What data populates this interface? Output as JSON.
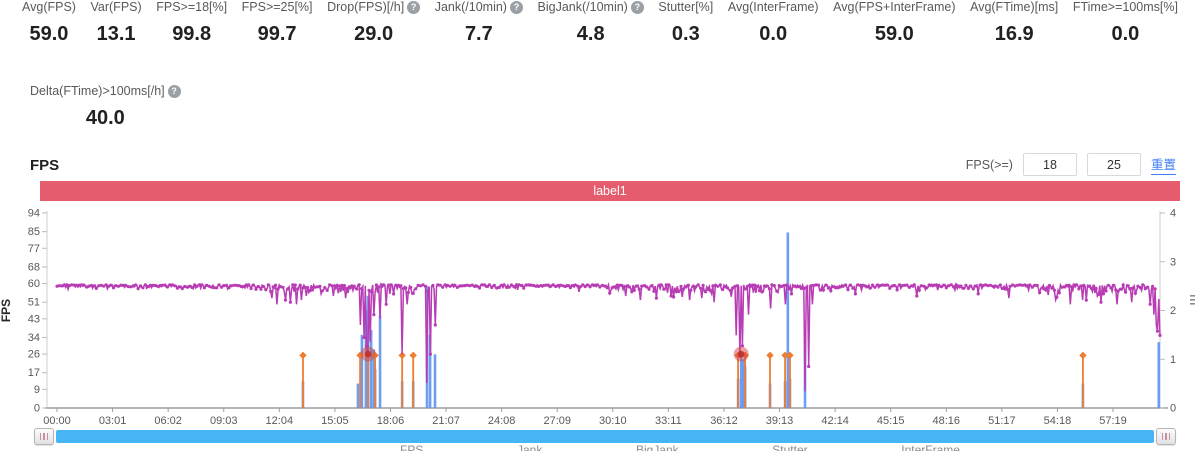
{
  "icons": {
    "help": "?"
  },
  "metrics": {
    "row1": [
      {
        "label": "Avg(FPS)",
        "value": "59.0"
      },
      {
        "label": "Var(FPS)",
        "value": "13.1"
      },
      {
        "label": "FPS>=18[%]",
        "value": "99.8"
      },
      {
        "label": "FPS>=25[%]",
        "value": "99.7"
      },
      {
        "label": "Drop(FPS)[/h]",
        "value": "29.0",
        "help": true
      },
      {
        "label": "Jank(/10min)",
        "value": "7.7",
        "help": true
      },
      {
        "label": "BigJank(/10min)",
        "value": "4.8",
        "help": true
      },
      {
        "label": "Stutter[%]",
        "value": "0.3"
      },
      {
        "label": "Avg(InterFrame)",
        "value": "0.0"
      },
      {
        "label": "Avg(FPS+InterFrame)",
        "value": "59.0"
      },
      {
        "label": "Avg(FTime)[ms]",
        "value": "16.9"
      },
      {
        "label": "FTime>=100ms[%]",
        "value": "0.0"
      }
    ],
    "row2": {
      "label": "Delta(FTime)>100ms[/h]",
      "value": "40.0",
      "help": true
    }
  },
  "section": {
    "title": "FPS"
  },
  "controls": {
    "fps_ge_label": "FPS(>=)",
    "threshold1": "18",
    "threshold2": "25",
    "reset_label": "重置"
  },
  "banner": {
    "text": "label1",
    "color": "#e45c6e"
  },
  "legend": {
    "items": [
      "FPS",
      "Jank",
      "BigJank",
      "Stutter",
      "InterFrame"
    ]
  },
  "chart_data": {
    "type": "line+bar",
    "title": "label1",
    "left_axis": {
      "label": "FPS",
      "range": [
        0,
        94
      ],
      "ticks": [
        0,
        9,
        17,
        26,
        34,
        43,
        51,
        60,
        68,
        77,
        85,
        94
      ]
    },
    "right_axis": {
      "range": [
        0,
        4
      ],
      "ticks": [
        0,
        1,
        2,
        3,
        4
      ]
    },
    "x_ticks": [
      "00:00",
      "03:01",
      "06:02",
      "09:03",
      "12:04",
      "15:05",
      "18:06",
      "21:07",
      "24:08",
      "27:09",
      "30:10",
      "33:11",
      "36:12",
      "39:13",
      "42:14",
      "45:15",
      "48:16",
      "51:17",
      "54:18",
      "57:19"
    ],
    "x_tick_interval_seconds": 181,
    "x_range_seconds": [
      0,
      3592
    ],
    "grid": false,
    "fps_line": {
      "color": "#b83cb4",
      "baseline": 59.6,
      "sample_step_seconds": 4,
      "noise_segments": [
        [
          0,
          690,
          1.3
        ],
        [
          690,
          830,
          3.2
        ],
        [
          830,
          1250,
          2.6
        ],
        [
          1250,
          1800,
          1.0
        ],
        [
          1800,
          2200,
          2.4
        ],
        [
          2200,
          2500,
          2.2
        ],
        [
          2500,
          3200,
          1.6
        ],
        [
          3200,
          3555,
          3.2
        ],
        [
          3555,
          3592,
          4.0
        ]
      ],
      "dips": [
        [
          700,
          53
        ],
        [
          715,
          50
        ],
        [
          745,
          52
        ],
        [
          760,
          51
        ],
        [
          778,
          50
        ],
        [
          795,
          52
        ],
        [
          810,
          54
        ],
        [
          860,
          55
        ],
        [
          900,
          54
        ],
        [
          940,
          53
        ],
        [
          987,
          40
        ],
        [
          1000,
          34
        ],
        [
          1006,
          30
        ],
        [
          1013,
          26
        ],
        [
          1020,
          32
        ],
        [
          1032,
          45
        ],
        [
          1052,
          43
        ],
        [
          1070,
          50
        ],
        [
          1124,
          26
        ],
        [
          1140,
          50
        ],
        [
          1205,
          12
        ],
        [
          1215,
          26
        ],
        [
          1231,
          40
        ],
        [
          1500,
          57
        ],
        [
          1700,
          56
        ],
        [
          1850,
          54
        ],
        [
          1900,
          52
        ],
        [
          1950,
          53
        ],
        [
          2000,
          54
        ],
        [
          2060,
          52
        ],
        [
          2100,
          53
        ],
        [
          2140,
          51
        ],
        [
          2210,
          35
        ],
        [
          2222,
          25
        ],
        [
          2232,
          30
        ],
        [
          2250,
          45
        ],
        [
          2322,
          48
        ],
        [
          2371,
          50
        ],
        [
          2382,
          67
        ],
        [
          2390,
          55
        ],
        [
          2436,
          8
        ],
        [
          2448,
          20
        ],
        [
          2460,
          50
        ],
        [
          2600,
          55
        ],
        [
          2800,
          54
        ],
        [
          3000,
          55
        ],
        [
          3100,
          53
        ],
        [
          3250,
          52
        ],
        [
          3300,
          50
        ],
        [
          3350,
          52
        ],
        [
          3400,
          51
        ],
        [
          3450,
          50
        ],
        [
          3500,
          51
        ],
        [
          3560,
          50
        ],
        [
          3570,
          45
        ],
        [
          3578,
          40
        ],
        [
          3584,
          37
        ],
        [
          3590,
          35
        ]
      ]
    },
    "jank_bars": {
      "color": "#5e93ef",
      "axis": "right",
      "points": [
        [
          801,
          0.55
        ],
        [
          980,
          0.5
        ],
        [
          993,
          1.5
        ],
        [
          1006,
          2.0
        ],
        [
          1013,
          2.3
        ],
        [
          1023,
          1.6
        ],
        [
          1032,
          1.2
        ],
        [
          1036,
          0.8
        ],
        [
          1052,
          1.9
        ],
        [
          1124,
          0.55
        ],
        [
          1160,
          0.55
        ],
        [
          1205,
          2.5
        ],
        [
          1215,
          1.5
        ],
        [
          1231,
          1.1
        ],
        [
          2218,
          0.6
        ],
        [
          2228,
          1.15
        ],
        [
          2235,
          1.0
        ],
        [
          2241,
          0.85
        ],
        [
          2322,
          0.5
        ],
        [
          2371,
          0.55
        ],
        [
          2380,
          3.6
        ],
        [
          2387,
          0.6
        ],
        [
          2436,
          1.6
        ],
        [
          3341,
          0.5
        ],
        [
          3588,
          1.35
        ]
      ]
    },
    "bigjank_stems": {
      "color": "#ee7d31",
      "axis": "right",
      "value": 1.08,
      "points": [
        801,
        987,
        1013,
        1036,
        1124,
        1160,
        2218,
        2241,
        2322,
        2371,
        2387,
        3341
      ]
    },
    "highlight_markers": {
      "color": "rgba(214,69,65,0.5)",
      "core_color": "rgba(190,45,45,0.85)",
      "axis": "left",
      "points": [
        [
          1013,
          26
        ],
        [
          2228,
          26
        ]
      ]
    }
  }
}
